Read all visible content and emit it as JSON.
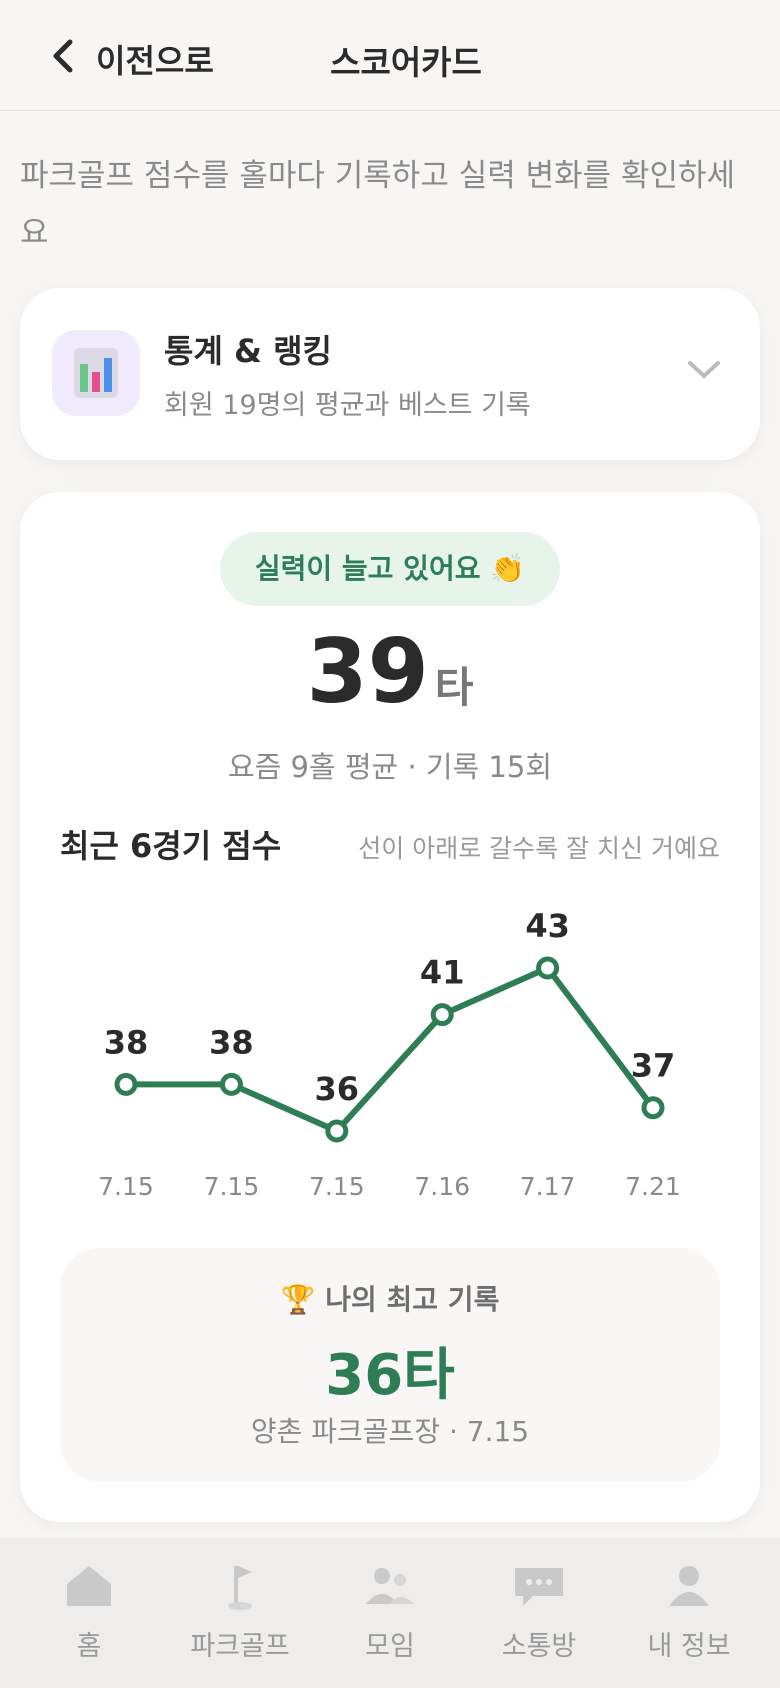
{
  "header": {
    "back": "이전으로",
    "title": "스코어카드"
  },
  "description": "파크골프 점수를 홀마다 기록하고 실력 변화를 확인하세요",
  "stats_card": {
    "title": "통계 & 랭킹",
    "subtitle": "회원 19명의 평균과 베스트 기록"
  },
  "summary": {
    "badge": "실력이 늘고 있어요 👏",
    "average": 39,
    "unit": "타",
    "caption": "요즘 9홀 평균 · 기록 15회"
  },
  "chart_data": {
    "type": "line",
    "title": "최근 6경기 점수",
    "subtitle": "선이 아래로 갈수록 잘 치신 거예요",
    "categories": [
      "7.15",
      "7.15",
      "7.15",
      "7.16",
      "7.17",
      "7.21"
    ],
    "values": [
      38,
      38,
      36,
      41,
      43,
      37
    ],
    "color": "#2e7d55"
  },
  "best": {
    "label": "🏆 나의 최고 기록",
    "score": "36타",
    "place": "양촌 파크골프장 · 7.15"
  },
  "nav": [
    "홈",
    "파크골프",
    "모임",
    "소통방",
    "내 정보"
  ]
}
